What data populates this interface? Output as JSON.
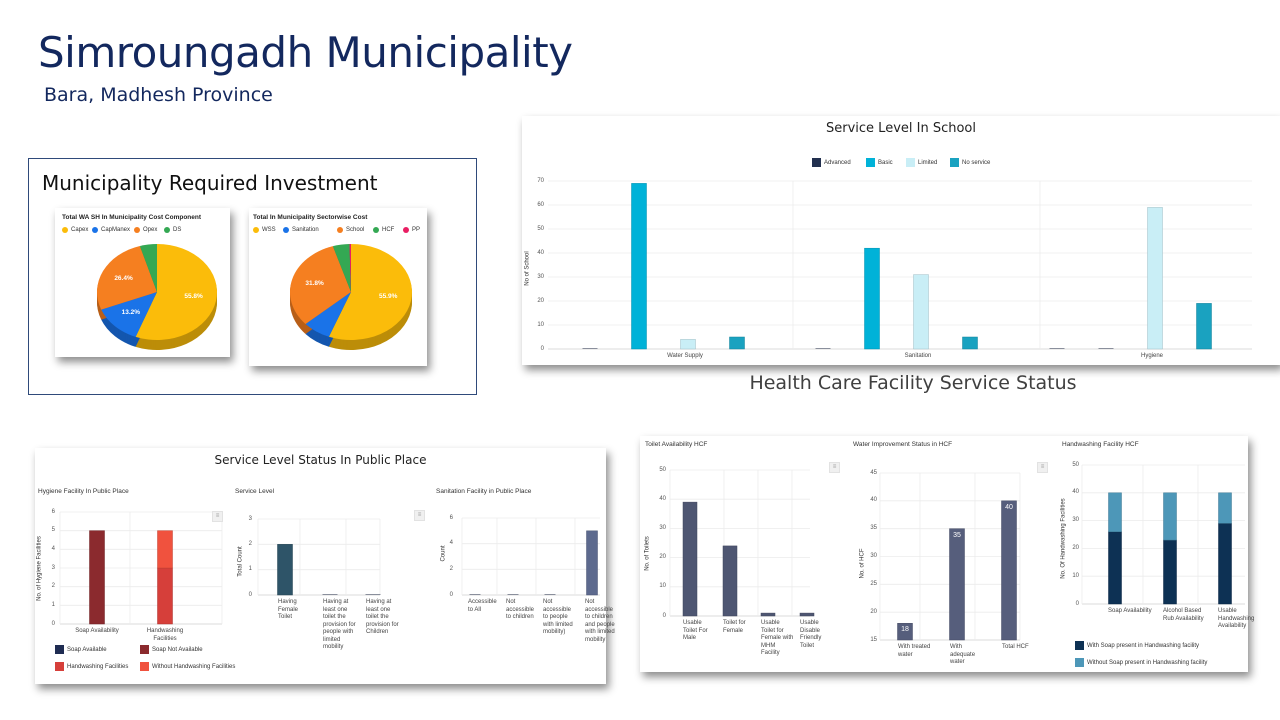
{
  "header": {
    "title": "Simroungadh Municipality",
    "subtitle": "Bara, Madhesh Province"
  },
  "investment": {
    "title": "Municipality Required Investment"
  },
  "hcf_section": {
    "title": "Health Care Facility Service Status"
  },
  "public_section": {
    "title": "Service Level Status In Public Place"
  },
  "chart_data": [
    {
      "type": "pie",
      "title": "Total WA SH In Municipality Cost Component",
      "labels": [
        "Capex",
        "CapManex",
        "Opex",
        "DS"
      ],
      "values": [
        55.8,
        13.2,
        26.4,
        4.6
      ],
      "value_labels": [
        "55.8%",
        "13.2%",
        "26.4%",
        ""
      ],
      "colors": [
        "#fbbc0a",
        "#1a73e8",
        "#f57f20",
        "#34a853"
      ],
      "legend": "top"
    },
    {
      "type": "pie",
      "title": "Total In Municipality Sectorwise Cost",
      "labels": [
        "WSS",
        "Sanitation",
        "School",
        "HCF",
        "PP"
      ],
      "values": [
        55.9,
        7.5,
        31.8,
        4.4,
        0.4
      ],
      "value_labels": [
        "55.9%",
        "",
        "31.8%",
        "",
        ""
      ],
      "colors": [
        "#fbbc0a",
        "#1a73e8",
        "#f57f20",
        "#34a853",
        "#e91e63"
      ],
      "legend": "top"
    },
    {
      "type": "bar",
      "title": "Service Level In School",
      "ylabel": "No of School",
      "xlabel": "",
      "categories": [
        "Water Supply",
        "Sanitation",
        "Hygiene"
      ],
      "series": [
        {
          "name": "Advanced",
          "values": [
            0,
            0,
            0
          ],
          "color": "#22304f"
        },
        {
          "name": "Basic",
          "values": [
            69,
            42,
            0
          ],
          "color": "#00b2d8"
        },
        {
          "name": "Limited",
          "values": [
            4,
            31,
            59
          ],
          "color": "#c9eef6"
        },
        {
          "name": "No service",
          "values": [
            5,
            5,
            19
          ],
          "color": "#1aa2c0"
        }
      ],
      "ylim": [
        0,
        70
      ],
      "yticks": [
        0,
        10,
        20,
        30,
        40,
        50,
        60,
        70
      ],
      "grid": true,
      "legend": "top-center"
    },
    {
      "type": "bar",
      "stacked": true,
      "title": "Hygiene Facility In Public Place",
      "ylabel": "No. of Hygiene Facilities",
      "categories": [
        "Soap Availability",
        "Handwashing Facilities"
      ],
      "series": [
        {
          "name": "Soap Available",
          "values": [
            0,
            0
          ],
          "color": "#1f2c52"
        },
        {
          "name": "Soap Not Available",
          "values": [
            5,
            0
          ],
          "color": "#8b2a2e"
        },
        {
          "name": "Handwashing Facilities",
          "values": [
            0,
            3
          ],
          "color": "#d63f3a"
        },
        {
          "name": "Without Handwashing Facilities",
          "values": [
            0,
            2
          ],
          "color": "#f0523e"
        }
      ],
      "ylim": [
        0,
        6
      ],
      "yticks": [
        0,
        1,
        2,
        3,
        4,
        5,
        6
      ],
      "legend": "bottom"
    },
    {
      "type": "bar",
      "title": "Service Level",
      "ylabel": "Total Count",
      "categories": [
        "Having Female Toilet",
        "Having at least one toilet the provision for people with limited mobility",
        "Having at least one toilet the provision for Children"
      ],
      "series": [
        {
          "name": "Total Count",
          "values": [
            2,
            0,
            0
          ],
          "color": "#2e5468"
        }
      ],
      "ylim": [
        0,
        3
      ],
      "yticks": [
        0,
        1,
        2,
        3
      ]
    },
    {
      "type": "bar",
      "title": "Sanitation Facility in Public Place",
      "ylabel": "Count",
      "categories": [
        "Accessible to All",
        "Not accessible to children",
        "Not accessible to people with limited mobility)",
        "Not accessible to children and people with limited mobility"
      ],
      "series": [
        {
          "name": "Count",
          "values": [
            0,
            0,
            0,
            5
          ],
          "color": "#5d6a8e"
        }
      ],
      "ylim": [
        0,
        6
      ],
      "yticks": [
        0,
        2,
        4,
        6
      ]
    },
    {
      "type": "bar",
      "title": "Toilet Availability HCF",
      "ylabel": "No. of Toilets",
      "categories": [
        "Usable Toilet For Male",
        "Toilet for Female",
        "Usable Toilet for Female with MHM Facility",
        "Usable Disable Friendly Toilet"
      ],
      "series": [
        {
          "name": "No. of Toilets",
          "values": [
            39,
            24,
            1,
            1
          ],
          "color": "#4e5672"
        }
      ],
      "ylim": [
        0,
        50
      ],
      "yticks": [
        0,
        10,
        20,
        30,
        40,
        50
      ]
    },
    {
      "type": "bar",
      "title": "Water Improvement Status in HCF",
      "ylabel": "No. of HCF",
      "categories": [
        "With treated water",
        "With adequate water",
        "Total HCF"
      ],
      "series": [
        {
          "name": "No. of HCF",
          "values": [
            18,
            35,
            40
          ],
          "color": "#565e7c"
        }
      ],
      "data_labels": [
        "18",
        "35",
        "40"
      ],
      "ylim": [
        15,
        45
      ],
      "yticks": [
        15,
        20,
        25,
        30,
        35,
        40,
        45
      ]
    },
    {
      "type": "bar",
      "stacked": true,
      "title": "Handwashing Facility HCF",
      "ylabel": "No. Of Handwashing Facilities",
      "categories": [
        "Soap Availability",
        "Alcohol Based Rub Availability",
        "Usable Handwashing Availability"
      ],
      "series": [
        {
          "name": "With Soap present in Handwashing facility",
          "values": [
            26,
            23,
            29
          ],
          "color": "#0d3154"
        },
        {
          "name": "Without Soap present in Handwashing facility",
          "values": [
            14,
            17,
            11
          ],
          "color": "#4d97b8"
        }
      ],
      "ylim": [
        0,
        50
      ],
      "yticks": [
        0,
        10,
        20,
        30,
        40,
        50
      ],
      "legend": "bottom"
    }
  ]
}
